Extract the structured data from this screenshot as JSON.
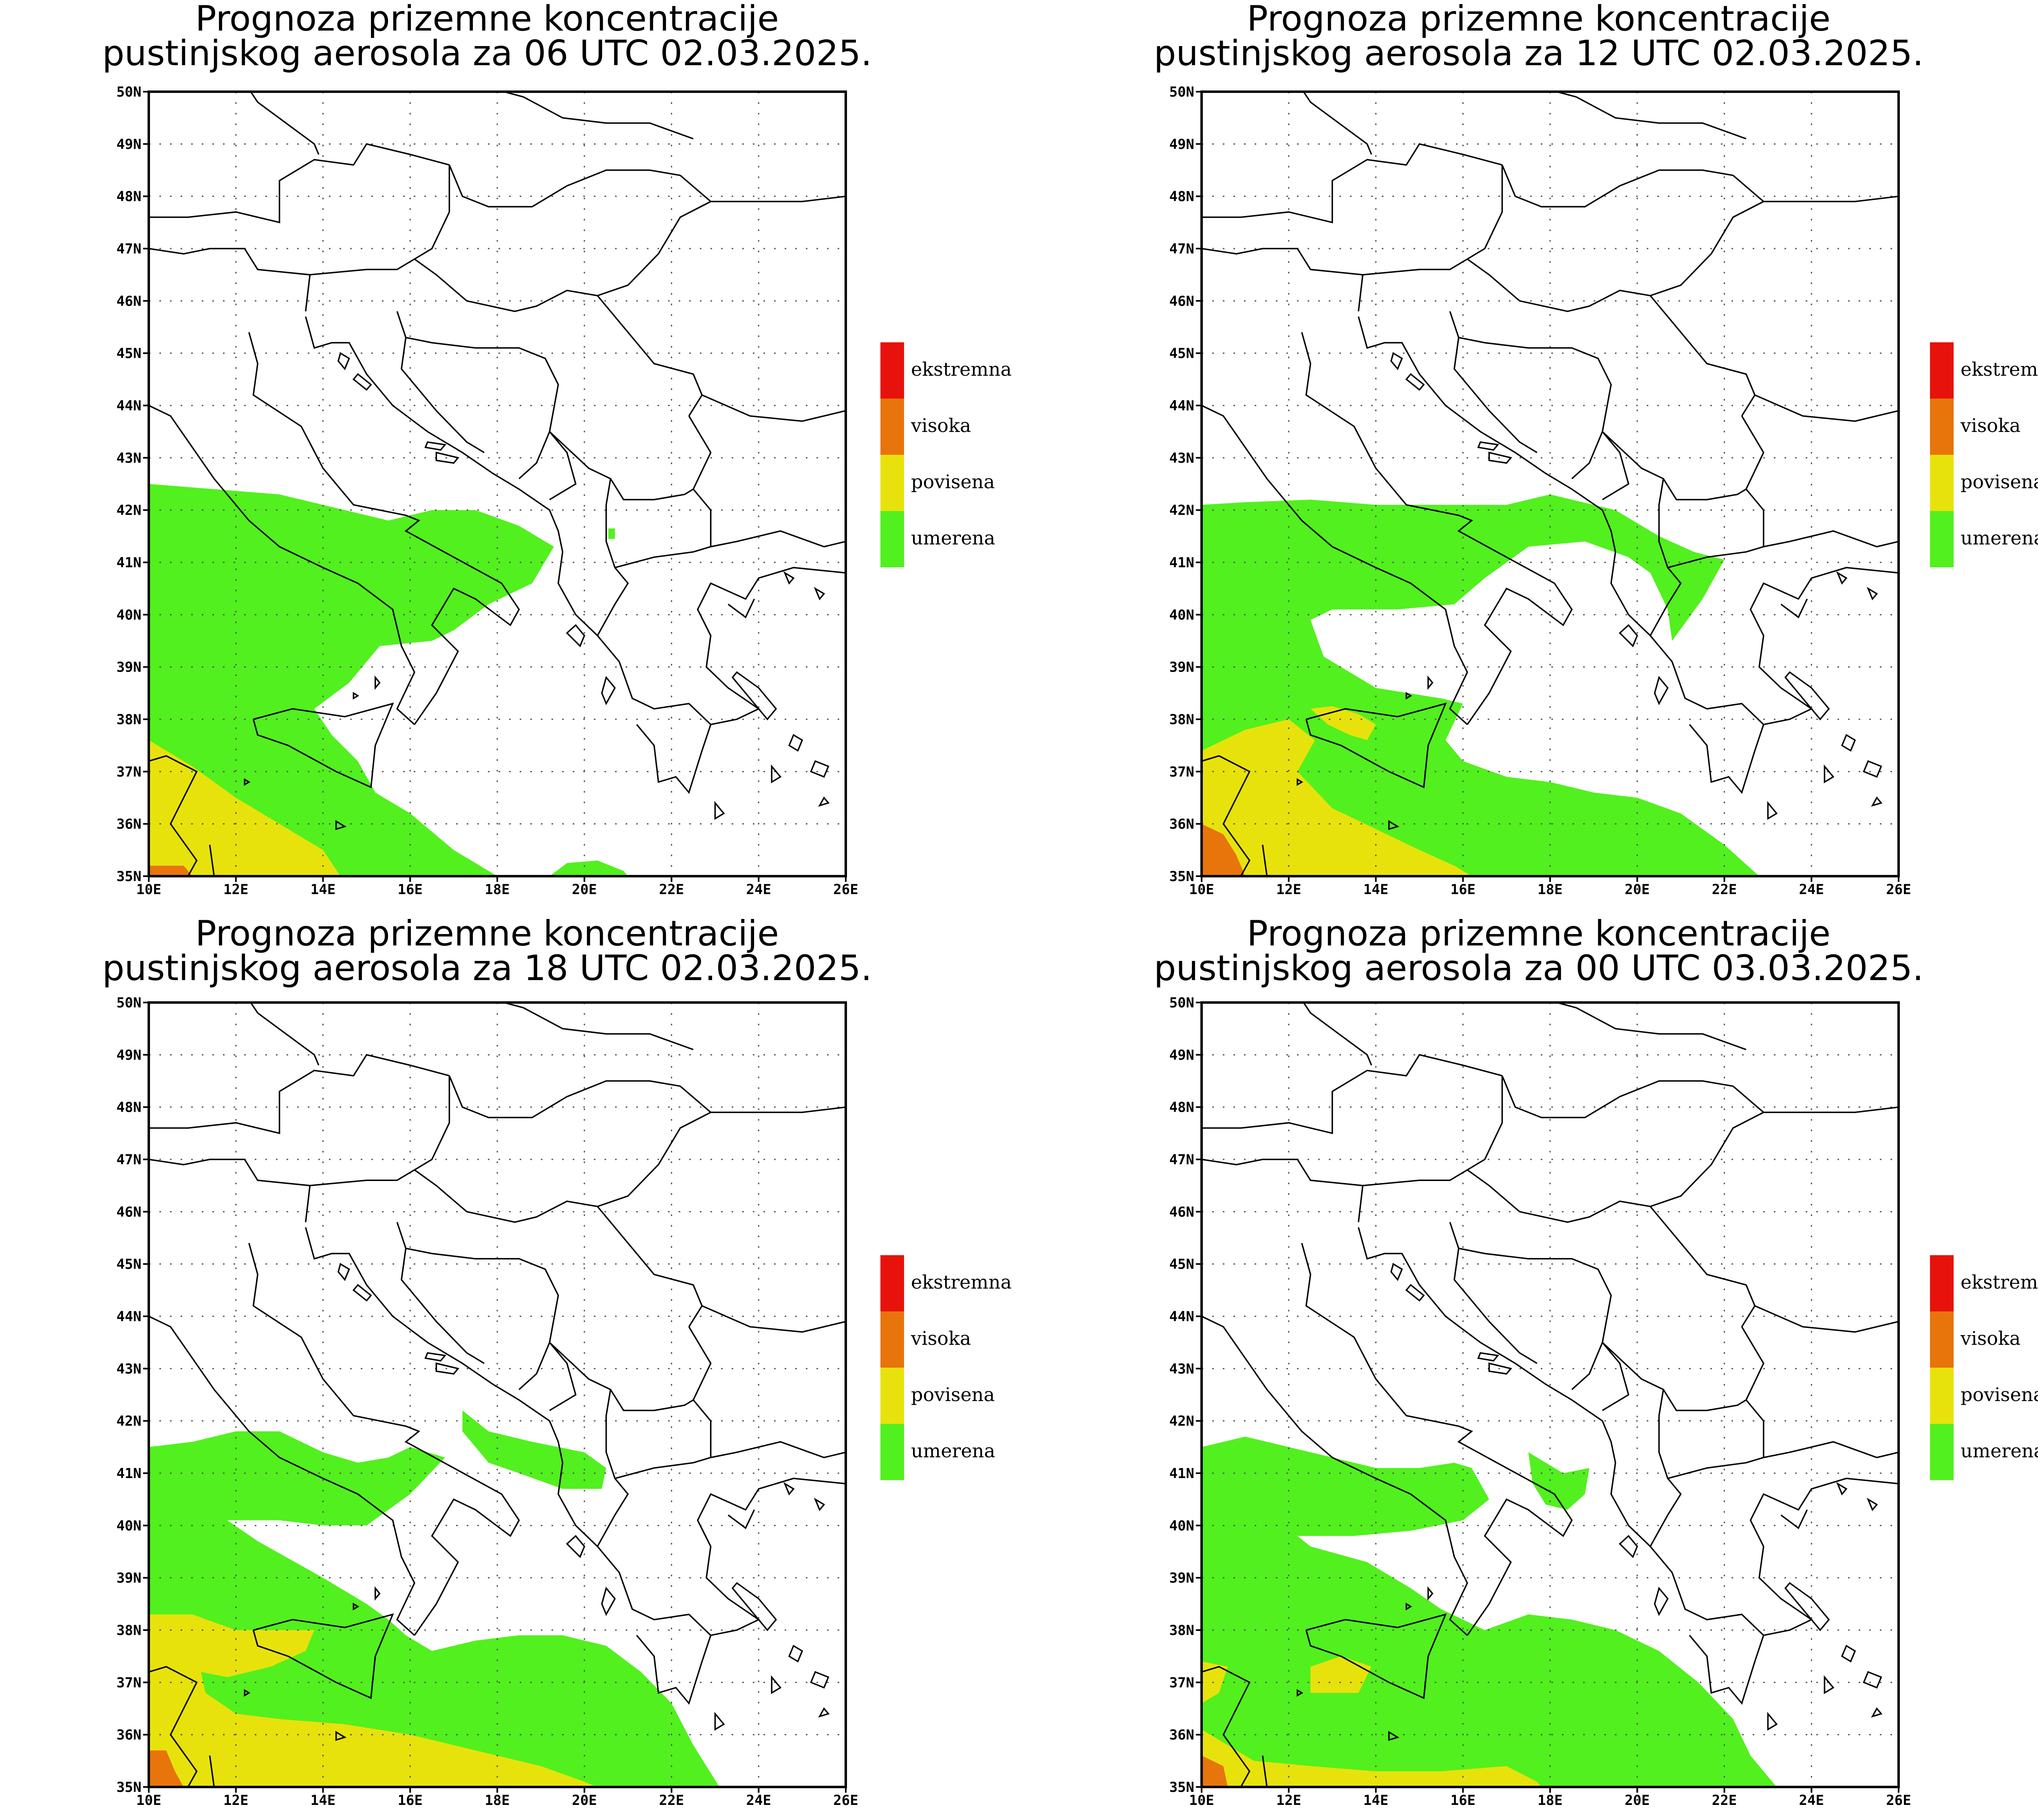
{
  "colors": {
    "ekstremna": "#e8120c",
    "visoka": "#e8740c",
    "povisena": "#e8e20c",
    "umerena": "#52f01e"
  },
  "legend": [
    {
      "key": "ekstremna",
      "label": "ekstremna"
    },
    {
      "key": "visoka",
      "label": "visoka"
    },
    {
      "key": "povisena",
      "label": "povisena"
    },
    {
      "key": "umerena",
      "label": "umerena"
    }
  ],
  "lon_ticks": [
    "10E",
    "12E",
    "14E",
    "16E",
    "18E",
    "20E",
    "22E",
    "24E",
    "26E"
  ],
  "lat_ticks": [
    "35N",
    "36N",
    "37N",
    "38N",
    "39N",
    "40N",
    "41N",
    "42N",
    "43N",
    "44N",
    "45N",
    "46N",
    "47N",
    "48N",
    "49N",
    "50N"
  ],
  "panels": [
    {
      "title1": "Prognoza prizemne koncentracije",
      "title2": "pustinjskog aerosola za 06 UTC 02.03.2025.",
      "fields": [
        {
          "level": "umerena",
          "poly": [
            [
              10,
              42.5
            ],
            [
              11.5,
              42.4
            ],
            [
              13,
              42.3
            ],
            [
              14.5,
              42
            ],
            [
              15.5,
              41.8
            ],
            [
              16.5,
              42
            ],
            [
              17.5,
              42
            ],
            [
              18.5,
              41.7
            ],
            [
              19.3,
              41.3
            ],
            [
              18.8,
              40.6
            ],
            [
              17.8,
              40.2
            ],
            [
              17,
              39.7
            ],
            [
              16.5,
              39.5
            ],
            [
              15.3,
              39.4
            ],
            [
              14.6,
              38.7
            ],
            [
              13.8,
              38.2
            ],
            [
              14.2,
              37.7
            ],
            [
              14.8,
              37.2
            ],
            [
              15.2,
              36.6
            ],
            [
              16,
              36.2
            ],
            [
              17,
              35.5
            ],
            [
              18,
              35
            ],
            [
              10,
              35
            ]
          ]
        },
        {
          "level": "umerena",
          "poly": [
            [
              19.2,
              35
            ],
            [
              19.6,
              35.25
            ],
            [
              20.3,
              35.3
            ],
            [
              20.9,
              35.1
            ],
            [
              21,
              35
            ]
          ]
        },
        {
          "level": "umerena",
          "poly": [
            [
              20.55,
              41.65
            ],
            [
              20.7,
              41.65
            ],
            [
              20.7,
              41.45
            ],
            [
              20.55,
              41.45
            ]
          ]
        },
        {
          "level": "povisena",
          "poly": [
            [
              10,
              37.6
            ],
            [
              11,
              37.1
            ],
            [
              12,
              36.5
            ],
            [
              13,
              36
            ],
            [
              14,
              35.5
            ],
            [
              14.4,
              35
            ],
            [
              10,
              35
            ]
          ]
        },
        {
          "level": "visoka",
          "poly": [
            [
              10,
              35.2
            ],
            [
              10.8,
              35.2
            ],
            [
              11,
              35
            ],
            [
              10,
              35
            ]
          ]
        }
      ]
    },
    {
      "title1": "Prognoza prizemne koncentracije",
      "title2": "pustinjskog aerosola za 12 UTC 02.03.2025.",
      "fields": [
        {
          "level": "umerena",
          "poly": [
            [
              10,
              42.1
            ],
            [
              11,
              42.15
            ],
            [
              12.5,
              42.2
            ],
            [
              14,
              42.1
            ],
            [
              15.5,
              42.1
            ],
            [
              17,
              42.1
            ],
            [
              18,
              42.3
            ],
            [
              19.5,
              42
            ],
            [
              20.5,
              41.5
            ],
            [
              21.3,
              41.2
            ],
            [
              22,
              41.05
            ],
            [
              21.5,
              40.3
            ],
            [
              20.8,
              39.5
            ],
            [
              20.7,
              40.1
            ],
            [
              20.3,
              40.8
            ],
            [
              19.8,
              41.1
            ],
            [
              18.8,
              41.4
            ],
            [
              17.5,
              41.3
            ],
            [
              16.5,
              40.7
            ],
            [
              15.8,
              40.2
            ],
            [
              14.5,
              40.1
            ],
            [
              13,
              40.1
            ],
            [
              12.5,
              39.9
            ],
            [
              12.8,
              39.2
            ],
            [
              14,
              38.6
            ],
            [
              15.5,
              38.4
            ],
            [
              16,
              38.3
            ],
            [
              15.6,
              37.6
            ],
            [
              16,
              37.2
            ],
            [
              17,
              36.9
            ],
            [
              18,
              36.8
            ],
            [
              19,
              36.6
            ],
            [
              20,
              36.5
            ],
            [
              21,
              36.2
            ],
            [
              22,
              35.6
            ],
            [
              22.8,
              35
            ],
            [
              10,
              35
            ]
          ]
        },
        {
          "level": "povisena",
          "poly": [
            [
              10,
              37.4
            ],
            [
              11,
              37.8
            ],
            [
              12,
              38
            ],
            [
              12.6,
              37.6
            ],
            [
              12.2,
              37
            ],
            [
              13,
              36.3
            ],
            [
              14,
              35.9
            ],
            [
              15,
              35.5
            ],
            [
              15.8,
              35.2
            ],
            [
              16.2,
              35
            ],
            [
              10,
              35
            ]
          ]
        },
        {
          "level": "povisena",
          "poly": [
            [
              12.5,
              38.2
            ],
            [
              13,
              38.25
            ],
            [
              13.6,
              38.1
            ],
            [
              14,
              37.9
            ],
            [
              13.8,
              37.6
            ],
            [
              13.4,
              37.7
            ],
            [
              12.9,
              37.9
            ]
          ]
        },
        {
          "level": "visoka",
          "poly": [
            [
              10,
              36
            ],
            [
              10.5,
              35.8
            ],
            [
              10.8,
              35.4
            ],
            [
              11,
              35
            ],
            [
              10,
              35
            ]
          ]
        }
      ]
    },
    {
      "title1": "Prognoza prizemne koncentracije",
      "title2": "pustinjskog aerosola za 18 UTC 02.03.2025.",
      "fields": [
        {
          "level": "umerena",
          "poly": [
            [
              10,
              41.5
            ],
            [
              11,
              41.6
            ],
            [
              12,
              41.8
            ],
            [
              13,
              41.8
            ],
            [
              14,
              41.4
            ],
            [
              14.8,
              41.2
            ],
            [
              15.5,
              41.3
            ],
            [
              16,
              41.5
            ],
            [
              16.8,
              41.3
            ],
            [
              16,
              40.6
            ],
            [
              15,
              40
            ],
            [
              14,
              40
            ],
            [
              13,
              40.1
            ],
            [
              11.8,
              40.1
            ],
            [
              12.5,
              39.7
            ],
            [
              14,
              39
            ],
            [
              15,
              38.5
            ],
            [
              15.5,
              38.2
            ],
            [
              15.9,
              37.9
            ],
            [
              16.5,
              37.6
            ],
            [
              17.5,
              37.8
            ],
            [
              18.5,
              37.9
            ],
            [
              19.5,
              37.9
            ],
            [
              20.5,
              37.7
            ],
            [
              21.3,
              37.2
            ],
            [
              22,
              36.6
            ],
            [
              22.5,
              35.8
            ],
            [
              23.1,
              35
            ],
            [
              10,
              35
            ]
          ]
        },
        {
          "level": "umerena",
          "poly": [
            [
              17.2,
              42.2
            ],
            [
              17.8,
              41.8
            ],
            [
              18.8,
              41.6
            ],
            [
              20,
              41.4
            ],
            [
              20.5,
              41.1
            ],
            [
              20.4,
              40.7
            ],
            [
              19.5,
              40.7
            ],
            [
              18.5,
              41
            ],
            [
              17.8,
              41.2
            ],
            [
              17.2,
              41.8
            ]
          ]
        },
        {
          "level": "povisena",
          "poly": [
            [
              10,
              38.3
            ],
            [
              11,
              38.3
            ],
            [
              12,
              38
            ],
            [
              13,
              38
            ],
            [
              13.8,
              38
            ],
            [
              13.6,
              37.6
            ],
            [
              12.8,
              37.3
            ],
            [
              11.8,
              37.1
            ],
            [
              11.2,
              37.2
            ],
            [
              11.3,
              36.8
            ],
            [
              12,
              36.4
            ],
            [
              13,
              36.3
            ],
            [
              14.5,
              36.2
            ],
            [
              16,
              36
            ],
            [
              17.5,
              35.7
            ],
            [
              19,
              35.4
            ],
            [
              20,
              35.1
            ],
            [
              20.3,
              35
            ],
            [
              10,
              35
            ]
          ]
        },
        {
          "level": "visoka",
          "poly": [
            [
              10,
              35.7
            ],
            [
              10.4,
              35.7
            ],
            [
              10.6,
              35.3
            ],
            [
              10.8,
              35
            ],
            [
              10,
              35
            ]
          ]
        }
      ]
    },
    {
      "title1": "Prognoza prizemne koncentracije",
      "title2": "pustinjskog aerosola za 00 UTC 03.03.2025.",
      "fields": [
        {
          "level": "umerena",
          "poly": [
            [
              10,
              41.5
            ],
            [
              11,
              41.7
            ],
            [
              12,
              41.5
            ],
            [
              13,
              41.3
            ],
            [
              14,
              41.1
            ],
            [
              15,
              41.1
            ],
            [
              15.8,
              41.2
            ],
            [
              16.2,
              41.1
            ],
            [
              16.6,
              40.5
            ],
            [
              16,
              40.1
            ],
            [
              14.8,
              39.9
            ],
            [
              13.5,
              39.8
            ],
            [
              12.2,
              39.8
            ],
            [
              12.5,
              39.6
            ],
            [
              13.8,
              39.3
            ],
            [
              14.8,
              38.8
            ],
            [
              15.5,
              38.4
            ],
            [
              16.5,
              38
            ],
            [
              17.5,
              38.3
            ],
            [
              18.5,
              38.2
            ],
            [
              19.5,
              38
            ],
            [
              20.5,
              37.6
            ],
            [
              21.4,
              37
            ],
            [
              22.2,
              36.3
            ],
            [
              22.6,
              35.6
            ],
            [
              23.2,
              35
            ],
            [
              10,
              35
            ]
          ]
        },
        {
          "level": "umerena",
          "poly": [
            [
              17.5,
              41.4
            ],
            [
              18.3,
              41.0
            ],
            [
              18.9,
              41.1
            ],
            [
              18.8,
              40.6
            ],
            [
              18.4,
              40.3
            ],
            [
              17.9,
              40.4
            ],
            [
              17.6,
              40.8
            ]
          ]
        },
        {
          "level": "povisena",
          "poly": [
            [
              12.5,
              37.3
            ],
            [
              13.2,
              37.5
            ],
            [
              13.9,
              37.3
            ],
            [
              13.6,
              36.8
            ],
            [
              12.5,
              36.8
            ]
          ]
        },
        {
          "level": "povisena",
          "poly": [
            [
              10,
              37.4
            ],
            [
              10.6,
              37.3
            ],
            [
              10.4,
              36.8
            ],
            [
              10,
              36.6
            ]
          ]
        },
        {
          "level": "povisena",
          "poly": [
            [
              10,
              36.1
            ],
            [
              10.8,
              35.7
            ],
            [
              11.2,
              35.5
            ],
            [
              12.5,
              35.4
            ],
            [
              14,
              35.3
            ],
            [
              15.5,
              35.3
            ],
            [
              17,
              35.4
            ],
            [
              17.7,
              35.1
            ],
            [
              17.8,
              35
            ],
            [
              10,
              35
            ]
          ]
        },
        {
          "level": "visoka",
          "poly": [
            [
              10,
              35.6
            ],
            [
              10.5,
              35.4
            ],
            [
              10.6,
              35
            ],
            [
              10,
              35
            ]
          ]
        }
      ]
    }
  ]
}
